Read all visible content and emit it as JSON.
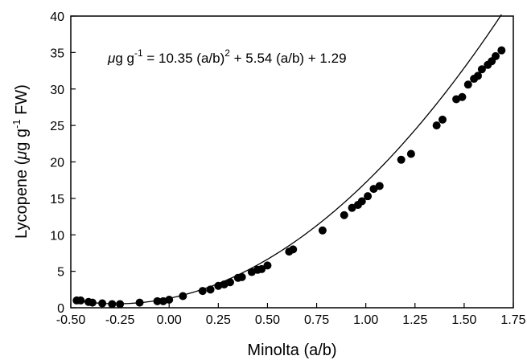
{
  "chart_data": {
    "type": "scatter",
    "title": "",
    "xlabel": "Minolta (a/b)",
    "ylabel": {
      "prefix": "Lycopene (",
      "mu": "μ",
      "unit": "g g",
      "sup": "-1",
      "suffix": " FW)"
    },
    "xlim": [
      -0.5,
      1.75
    ],
    "ylim": [
      0,
      40
    ],
    "x_ticks": [
      -0.5,
      -0.25,
      0.0,
      0.25,
      0.5,
      0.75,
      1.0,
      1.25,
      1.5,
      1.75
    ],
    "x_tick_labels": [
      "-0.50",
      "-0.25",
      "0.00",
      "0.25",
      "0.50",
      "0.75",
      "1.00",
      "1.25",
      "1.50",
      "1.75"
    ],
    "y_ticks": [
      0,
      5,
      10,
      15,
      20,
      25,
      30,
      35,
      40
    ],
    "y_tick_labels": [
      "0",
      "5",
      "10",
      "15",
      "20",
      "25",
      "30",
      "35",
      "40"
    ],
    "grid": false,
    "legend": "none",
    "annotation": {
      "mu": "μ",
      "lhs": "g g",
      "lhs_sup": "-1",
      "rhs_a": " = 10.35 (a/b)",
      "rhs_sup": "2",
      "rhs_b": " + 5.54 (a/b) + 1.29"
    },
    "fit": {
      "a": 10.35,
      "b": 5.54,
      "c": 1.29,
      "x_start": -0.47,
      "x_end": 1.69
    },
    "series": [
      {
        "marker_color": "#000000",
        "points": [
          [
            -0.47,
            1.0
          ],
          [
            -0.45,
            1.0
          ],
          [
            -0.41,
            0.8
          ],
          [
            -0.39,
            0.7
          ],
          [
            -0.34,
            0.6
          ],
          [
            -0.29,
            0.5
          ],
          [
            -0.25,
            0.5
          ],
          [
            -0.15,
            0.7
          ],
          [
            -0.06,
            0.9
          ],
          [
            -0.03,
            0.9
          ],
          [
            0.0,
            1.1
          ],
          [
            0.07,
            1.6
          ],
          [
            0.17,
            2.3
          ],
          [
            0.21,
            2.5
          ],
          [
            0.25,
            3.0
          ],
          [
            0.28,
            3.2
          ],
          [
            0.31,
            3.5
          ],
          [
            0.35,
            4.1
          ],
          [
            0.37,
            4.2
          ],
          [
            0.42,
            4.9
          ],
          [
            0.45,
            5.2
          ],
          [
            0.47,
            5.3
          ],
          [
            0.5,
            5.8
          ],
          [
            0.61,
            7.7
          ],
          [
            0.63,
            8.0
          ],
          [
            0.78,
            10.6
          ],
          [
            0.89,
            12.7
          ],
          [
            0.93,
            13.7
          ],
          [
            0.96,
            14.1
          ],
          [
            0.98,
            14.6
          ],
          [
            1.01,
            15.3
          ],
          [
            1.04,
            16.3
          ],
          [
            1.07,
            16.7
          ],
          [
            1.18,
            20.3
          ],
          [
            1.23,
            21.1
          ],
          [
            1.36,
            25.0
          ],
          [
            1.39,
            25.8
          ],
          [
            1.46,
            28.6
          ],
          [
            1.49,
            28.9
          ],
          [
            1.52,
            30.6
          ],
          [
            1.55,
            31.4
          ],
          [
            1.57,
            31.8
          ],
          [
            1.59,
            32.7
          ],
          [
            1.62,
            33.3
          ],
          [
            1.64,
            33.8
          ],
          [
            1.66,
            34.5
          ],
          [
            1.69,
            35.3
          ]
        ]
      }
    ]
  }
}
